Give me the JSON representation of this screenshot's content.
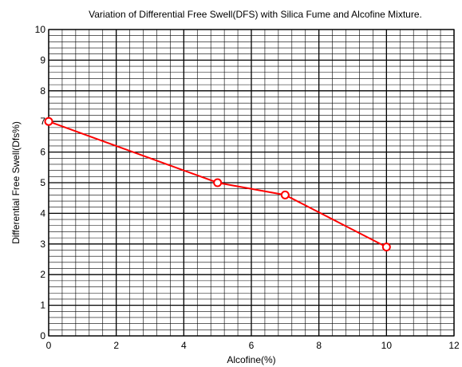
{
  "chart_data": {
    "type": "line",
    "title": "Variation of Differential Free Swell(DFS) with Silica Fume and Alcofine Mixture.",
    "xlabel": "Alcofine(%)",
    "ylabel": "Differential Free Swell(Dfs%)",
    "xlim": [
      0,
      12
    ],
    "ylim": [
      0,
      10
    ],
    "xticks": [
      0,
      2,
      4,
      6,
      8,
      10,
      12
    ],
    "yticks": [
      0,
      1,
      2,
      3,
      4,
      5,
      6,
      7,
      8,
      9,
      10
    ],
    "minor_grid_step_x": 0.4,
    "minor_grid_step_y": 0.2,
    "grid": true,
    "series": [
      {
        "color": "#ff0000",
        "marker": "open-circle",
        "x": [
          0,
          5,
          7,
          10
        ],
        "y": [
          7.0,
          5.0,
          4.6,
          2.9
        ]
      }
    ]
  }
}
